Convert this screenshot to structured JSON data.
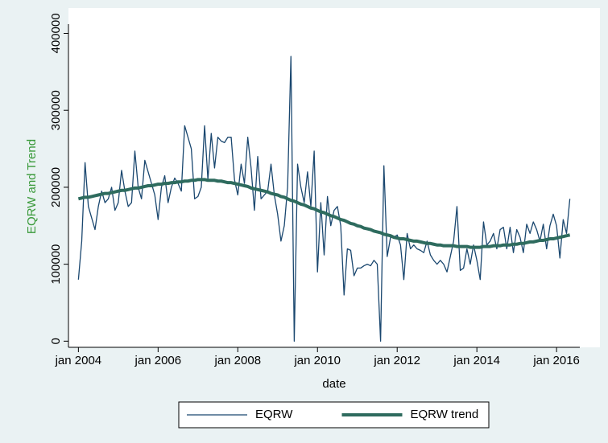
{
  "chart_data": {
    "type": "line",
    "ylabel": "EQRW and Trend",
    "xlabel": "date",
    "x": [
      "2004-01",
      "2004-02",
      "2004-03",
      "2004-04",
      "2004-05",
      "2004-06",
      "2004-07",
      "2004-08",
      "2004-09",
      "2004-10",
      "2004-11",
      "2004-12",
      "2005-01",
      "2005-02",
      "2005-03",
      "2005-04",
      "2005-05",
      "2005-06",
      "2005-07",
      "2005-08",
      "2005-09",
      "2005-10",
      "2005-11",
      "2005-12",
      "2006-01",
      "2006-02",
      "2006-03",
      "2006-04",
      "2006-05",
      "2006-06",
      "2006-07",
      "2006-08",
      "2006-09",
      "2006-10",
      "2006-11",
      "2006-12",
      "2007-01",
      "2007-02",
      "2007-03",
      "2007-04",
      "2007-05",
      "2007-06",
      "2007-07",
      "2007-08",
      "2007-09",
      "2007-10",
      "2007-11",
      "2007-12",
      "2008-01",
      "2008-02",
      "2008-03",
      "2008-04",
      "2008-05",
      "2008-06",
      "2008-07",
      "2008-08",
      "2008-09",
      "2008-10",
      "2008-11",
      "2008-12",
      "2009-01",
      "2009-02",
      "2009-03",
      "2009-04",
      "2009-05",
      "2009-06",
      "2009-07",
      "2009-08",
      "2009-09",
      "2009-10",
      "2009-11",
      "2009-12",
      "2010-01",
      "2010-02",
      "2010-03",
      "2010-04",
      "2010-05",
      "2010-06",
      "2010-07",
      "2010-08",
      "2010-09",
      "2010-10",
      "2010-11",
      "2010-12",
      "2011-01",
      "2011-02",
      "2011-03",
      "2011-04",
      "2011-05",
      "2011-06",
      "2011-07",
      "2011-08",
      "2011-09",
      "2011-10",
      "2011-11",
      "2011-12",
      "2012-01",
      "2012-02",
      "2012-03",
      "2012-04",
      "2012-05",
      "2012-06",
      "2012-07",
      "2012-08",
      "2012-09",
      "2012-10",
      "2012-11",
      "2012-12",
      "2013-01",
      "2013-02",
      "2013-03",
      "2013-04",
      "2013-05",
      "2013-06",
      "2013-07",
      "2013-08",
      "2013-09",
      "2013-10",
      "2013-11",
      "2013-12",
      "2014-01",
      "2014-02",
      "2014-03",
      "2014-04",
      "2014-05",
      "2014-06",
      "2014-07",
      "2014-08",
      "2014-09",
      "2014-10",
      "2014-11",
      "2014-12",
      "2015-01",
      "2015-02",
      "2015-03",
      "2015-04",
      "2015-05",
      "2015-06",
      "2015-07",
      "2015-08",
      "2015-09",
      "2015-10",
      "2015-11",
      "2015-12",
      "2016-01",
      "2016-02",
      "2016-03",
      "2016-04",
      "2016-05"
    ],
    "series": [
      {
        "name": "EQRW",
        "color": "#1a476f",
        "width": 1.3,
        "values": [
          80000,
          130000,
          232000,
          175000,
          160000,
          145000,
          175000,
          195000,
          180000,
          185000,
          200000,
          170000,
          180000,
          222000,
          195000,
          175000,
          180000,
          247000,
          200000,
          185000,
          235000,
          220000,
          205000,
          190000,
          158000,
          200000,
          215000,
          180000,
          200000,
          212000,
          205000,
          195000,
          280000,
          265000,
          250000,
          185000,
          188000,
          200000,
          280000,
          210000,
          270000,
          225000,
          265000,
          260000,
          258000,
          265000,
          265000,
          210000,
          190000,
          230000,
          205000,
          265000,
          225000,
          170000,
          240000,
          185000,
          190000,
          195000,
          230000,
          190000,
          165000,
          130000,
          150000,
          200000,
          370000,
          0,
          230000,
          200000,
          180000,
          220000,
          175000,
          247000,
          90000,
          180000,
          112000,
          188000,
          150000,
          170000,
          175000,
          150000,
          60000,
          120000,
          118000,
          85000,
          95000,
          95000,
          98000,
          100000,
          98000,
          105000,
          100000,
          0,
          228000,
          110000,
          135000,
          135000,
          138000,
          125000,
          80000,
          140000,
          120000,
          125000,
          120000,
          118000,
          115000,
          130000,
          112000,
          105000,
          100000,
          105000,
          100000,
          90000,
          110000,
          130000,
          175000,
          92000,
          95000,
          120000,
          100000,
          125000,
          105000,
          80000,
          155000,
          125000,
          130000,
          140000,
          120000,
          145000,
          148000,
          120000,
          148000,
          115000,
          145000,
          135000,
          115000,
          152000,
          140000,
          155000,
          145000,
          130000,
          152000,
          120000,
          150000,
          165000,
          150000,
          108000,
          158000,
          140000,
          185000
        ]
      },
      {
        "name": "EQRW trend",
        "color": "#2e6b5e",
        "width": 4,
        "values": [
          185000,
          186000,
          187000,
          187000,
          188000,
          189000,
          190000,
          191000,
          192000,
          192000,
          193000,
          194000,
          195000,
          196000,
          196000,
          197000,
          198000,
          199000,
          199000,
          200000,
          201000,
          202000,
          202000,
          203000,
          204000,
          204000,
          205000,
          205000,
          206000,
          206000,
          207000,
          207000,
          208000,
          208000,
          209000,
          209000,
          210000,
          210000,
          210000,
          209000,
          209000,
          209000,
          208000,
          208000,
          207000,
          206000,
          206000,
          205000,
          204000,
          203000,
          202000,
          201000,
          199000,
          198000,
          197000,
          196000,
          195000,
          194000,
          192000,
          191000,
          190000,
          188000,
          187000,
          185000,
          183000,
          182000,
          180000,
          178000,
          177000,
          175000,
          173000,
          172000,
          170000,
          168000,
          167000,
          165000,
          163000,
          162000,
          160000,
          158000,
          157000,
          155000,
          153000,
          152000,
          150000,
          149000,
          147000,
          146000,
          145000,
          143000,
          142000,
          141000,
          139000,
          138000,
          137000,
          135000,
          134000,
          133000,
          133000,
          132000,
          131000,
          130000,
          130000,
          129000,
          128000,
          127000,
          127000,
          126000,
          125000,
          125000,
          124000,
          124000,
          124000,
          124000,
          123000,
          123000,
          123000,
          123000,
          122000,
          122000,
          122000,
          122000,
          123000,
          123000,
          123000,
          124000,
          124000,
          124000,
          125000,
          125000,
          125000,
          126000,
          126000,
          127000,
          127000,
          128000,
          129000,
          129000,
          130000,
          131000,
          131000,
          132000,
          133000,
          133000,
          134000,
          135000,
          136000,
          137000,
          138000
        ]
      }
    ],
    "xlim": [
      "2003-10",
      "2016-08"
    ],
    "xticks": [
      {
        "value": "2004-01",
        "label": "jan 2004"
      },
      {
        "value": "2006-01",
        "label": "jan 2006"
      },
      {
        "value": "2008-01",
        "label": "jan 2008"
      },
      {
        "value": "2010-01",
        "label": "jan 2010"
      },
      {
        "value": "2012-01",
        "label": "jan 2012"
      },
      {
        "value": "2014-01",
        "label": "jan 2014"
      },
      {
        "value": "2016-01",
        "label": "jan 2016"
      }
    ],
    "ylim": [
      -8000,
      412000
    ],
    "yticks": [
      0,
      100000,
      200000,
      300000,
      400000
    ],
    "ylabel_color": "#3a9a3a",
    "legend": "bottom"
  }
}
